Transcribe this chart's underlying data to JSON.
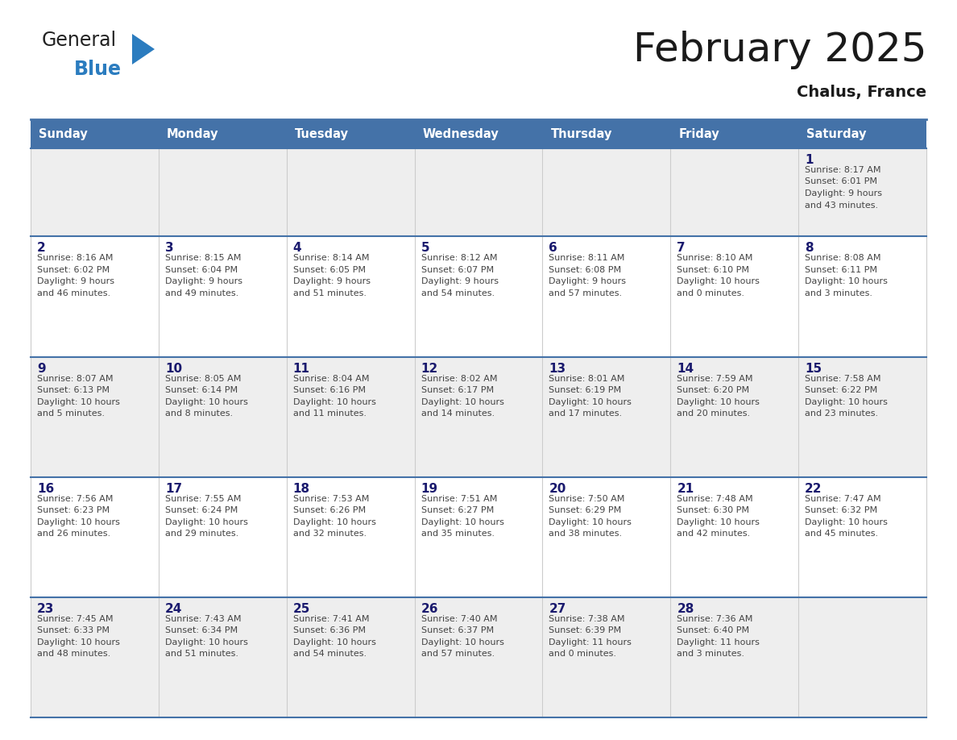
{
  "title": "February 2025",
  "subtitle": "Chalus, France",
  "header_bg": "#4472a8",
  "header_text": "#ffffff",
  "weekdays": [
    "Sunday",
    "Monday",
    "Tuesday",
    "Wednesday",
    "Thursday",
    "Friday",
    "Saturday"
  ],
  "row_bg_odd": "#eeeeee",
  "row_bg_even": "#ffffff",
  "cell_text_color": "#444444",
  "day_num_color": "#1a1a6e",
  "border_color": "#4472a8",
  "cell_border_color": "#aaaaaa",
  "days": [
    {
      "date": 1,
      "col": 6,
      "row": 0,
      "sunrise": "8:17 AM",
      "sunset": "6:01 PM",
      "daylight_h": "9 hours",
      "daylight_m": "43 minutes"
    },
    {
      "date": 2,
      "col": 0,
      "row": 1,
      "sunrise": "8:16 AM",
      "sunset": "6:02 PM",
      "daylight_h": "9 hours",
      "daylight_m": "46 minutes"
    },
    {
      "date": 3,
      "col": 1,
      "row": 1,
      "sunrise": "8:15 AM",
      "sunset": "6:04 PM",
      "daylight_h": "9 hours",
      "daylight_m": "49 minutes"
    },
    {
      "date": 4,
      "col": 2,
      "row": 1,
      "sunrise": "8:14 AM",
      "sunset": "6:05 PM",
      "daylight_h": "9 hours",
      "daylight_m": "51 minutes"
    },
    {
      "date": 5,
      "col": 3,
      "row": 1,
      "sunrise": "8:12 AM",
      "sunset": "6:07 PM",
      "daylight_h": "9 hours",
      "daylight_m": "54 minutes"
    },
    {
      "date": 6,
      "col": 4,
      "row": 1,
      "sunrise": "8:11 AM",
      "sunset": "6:08 PM",
      "daylight_h": "9 hours",
      "daylight_m": "57 minutes"
    },
    {
      "date": 7,
      "col": 5,
      "row": 1,
      "sunrise": "8:10 AM",
      "sunset": "6:10 PM",
      "daylight_h": "10 hours",
      "daylight_m": "0 minutes"
    },
    {
      "date": 8,
      "col": 6,
      "row": 1,
      "sunrise": "8:08 AM",
      "sunset": "6:11 PM",
      "daylight_h": "10 hours",
      "daylight_m": "3 minutes"
    },
    {
      "date": 9,
      "col": 0,
      "row": 2,
      "sunrise": "8:07 AM",
      "sunset": "6:13 PM",
      "daylight_h": "10 hours",
      "daylight_m": "5 minutes"
    },
    {
      "date": 10,
      "col": 1,
      "row": 2,
      "sunrise": "8:05 AM",
      "sunset": "6:14 PM",
      "daylight_h": "10 hours",
      "daylight_m": "8 minutes"
    },
    {
      "date": 11,
      "col": 2,
      "row": 2,
      "sunrise": "8:04 AM",
      "sunset": "6:16 PM",
      "daylight_h": "10 hours",
      "daylight_m": "11 minutes"
    },
    {
      "date": 12,
      "col": 3,
      "row": 2,
      "sunrise": "8:02 AM",
      "sunset": "6:17 PM",
      "daylight_h": "10 hours",
      "daylight_m": "14 minutes"
    },
    {
      "date": 13,
      "col": 4,
      "row": 2,
      "sunrise": "8:01 AM",
      "sunset": "6:19 PM",
      "daylight_h": "10 hours",
      "daylight_m": "17 minutes"
    },
    {
      "date": 14,
      "col": 5,
      "row": 2,
      "sunrise": "7:59 AM",
      "sunset": "6:20 PM",
      "daylight_h": "10 hours",
      "daylight_m": "20 minutes"
    },
    {
      "date": 15,
      "col": 6,
      "row": 2,
      "sunrise": "7:58 AM",
      "sunset": "6:22 PM",
      "daylight_h": "10 hours",
      "daylight_m": "23 minutes"
    },
    {
      "date": 16,
      "col": 0,
      "row": 3,
      "sunrise": "7:56 AM",
      "sunset": "6:23 PM",
      "daylight_h": "10 hours",
      "daylight_m": "26 minutes"
    },
    {
      "date": 17,
      "col": 1,
      "row": 3,
      "sunrise": "7:55 AM",
      "sunset": "6:24 PM",
      "daylight_h": "10 hours",
      "daylight_m": "29 minutes"
    },
    {
      "date": 18,
      "col": 2,
      "row": 3,
      "sunrise": "7:53 AM",
      "sunset": "6:26 PM",
      "daylight_h": "10 hours",
      "daylight_m": "32 minutes"
    },
    {
      "date": 19,
      "col": 3,
      "row": 3,
      "sunrise": "7:51 AM",
      "sunset": "6:27 PM",
      "daylight_h": "10 hours",
      "daylight_m": "35 minutes"
    },
    {
      "date": 20,
      "col": 4,
      "row": 3,
      "sunrise": "7:50 AM",
      "sunset": "6:29 PM",
      "daylight_h": "10 hours",
      "daylight_m": "38 minutes"
    },
    {
      "date": 21,
      "col": 5,
      "row": 3,
      "sunrise": "7:48 AM",
      "sunset": "6:30 PM",
      "daylight_h": "10 hours",
      "daylight_m": "42 minutes"
    },
    {
      "date": 22,
      "col": 6,
      "row": 3,
      "sunrise": "7:47 AM",
      "sunset": "6:32 PM",
      "daylight_h": "10 hours",
      "daylight_m": "45 minutes"
    },
    {
      "date": 23,
      "col": 0,
      "row": 4,
      "sunrise": "7:45 AM",
      "sunset": "6:33 PM",
      "daylight_h": "10 hours",
      "daylight_m": "48 minutes"
    },
    {
      "date": 24,
      "col": 1,
      "row": 4,
      "sunrise": "7:43 AM",
      "sunset": "6:34 PM",
      "daylight_h": "10 hours",
      "daylight_m": "51 minutes"
    },
    {
      "date": 25,
      "col": 2,
      "row": 4,
      "sunrise": "7:41 AM",
      "sunset": "6:36 PM",
      "daylight_h": "10 hours",
      "daylight_m": "54 minutes"
    },
    {
      "date": 26,
      "col": 3,
      "row": 4,
      "sunrise": "7:40 AM",
      "sunset": "6:37 PM",
      "daylight_h": "10 hours",
      "daylight_m": "57 minutes"
    },
    {
      "date": 27,
      "col": 4,
      "row": 4,
      "sunrise": "7:38 AM",
      "sunset": "6:39 PM",
      "daylight_h": "11 hours",
      "daylight_m": "0 minutes"
    },
    {
      "date": 28,
      "col": 5,
      "row": 4,
      "sunrise": "7:36 AM",
      "sunset": "6:40 PM",
      "daylight_h": "11 hours",
      "daylight_m": "3 minutes"
    }
  ],
  "num_rows": 5,
  "logo_text_general": "General",
  "logo_text_blue": "Blue",
  "logo_color_general": "#222222",
  "logo_color_blue": "#2b7cbf",
  "logo_triangle_color": "#2b7cbf"
}
